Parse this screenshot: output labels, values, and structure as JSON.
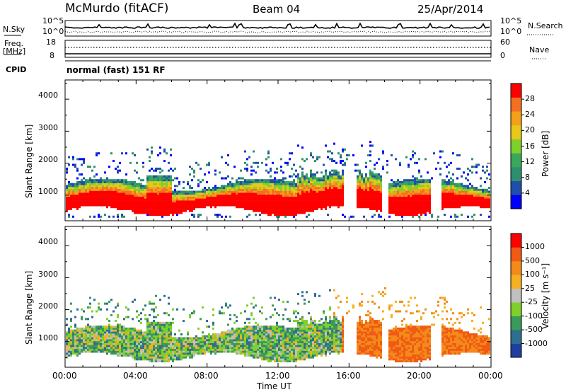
{
  "header": {
    "station": "McMurdo (fitACF)",
    "beam": "Beam 04",
    "date": "25/Apr/2014"
  },
  "top_panels": {
    "nsky_label": "N.Sky",
    "nsearch_label": "N.Search",
    "nsky_ticks": [
      "10^5",
      "10^0"
    ],
    "freq_label": "Freq.",
    "freq_unit": "[MHz]",
    "freq_ticks": [
      "18",
      "8"
    ],
    "nave_label": "Nave",
    "nave_ticks": [
      "60",
      "0"
    ],
    "cpid_label": "CPID",
    "cpid_text": "normal (fast) 151 RF"
  },
  "chart_data": [
    {
      "type": "heatmap",
      "panel": "power",
      "ylabel": "Slant Range [km]",
      "y_ticks": [
        "1000",
        "2000",
        "3000",
        "4000"
      ],
      "ylim": [
        200,
        4600
      ],
      "xlim": [
        "00:00",
        "24:00"
      ],
      "colorbar_label": "Power [dB]",
      "colorbar_ticks": [
        "28",
        "24",
        "20",
        "16",
        "12",
        "8",
        "4"
      ],
      "colors": [
        "#0000ff",
        "#1f4faa",
        "#2e8f6e",
        "#3aa85a",
        "#7fd02a",
        "#e8c81a",
        "#f4a11a",
        "#f37021",
        "#ff0000"
      ],
      "description_values": {
        "main_echo_band_km": [
          500,
          1600
        ],
        "peak_power_db": 30
      }
    },
    {
      "type": "heatmap",
      "panel": "velocity",
      "ylabel": "Slant Range [km]",
      "y_ticks": [
        "1000",
        "2000",
        "3000",
        "4000"
      ],
      "ylim": [
        200,
        4600
      ],
      "xlim": [
        "00:00",
        "24:00"
      ],
      "colorbar_label": "Velocity [m s⁻¹]",
      "colorbar_ticks": [
        "1000",
        "500",
        "100",
        "25",
        "-25",
        "-100",
        "-500",
        "-1000"
      ],
      "colors": [
        "#1f3fa0",
        "#2e6e8f",
        "#3a9a5a",
        "#7fd02a",
        "#c0c0c0",
        "#f4b020",
        "#f38a1a",
        "#f05a14",
        "#ff0000"
      ]
    }
  ],
  "x_axis": {
    "ticks": [
      "00:00",
      "04:00",
      "08:00",
      "12:00",
      "16:00",
      "20:00",
      "00:00"
    ],
    "label": "Time UT"
  }
}
